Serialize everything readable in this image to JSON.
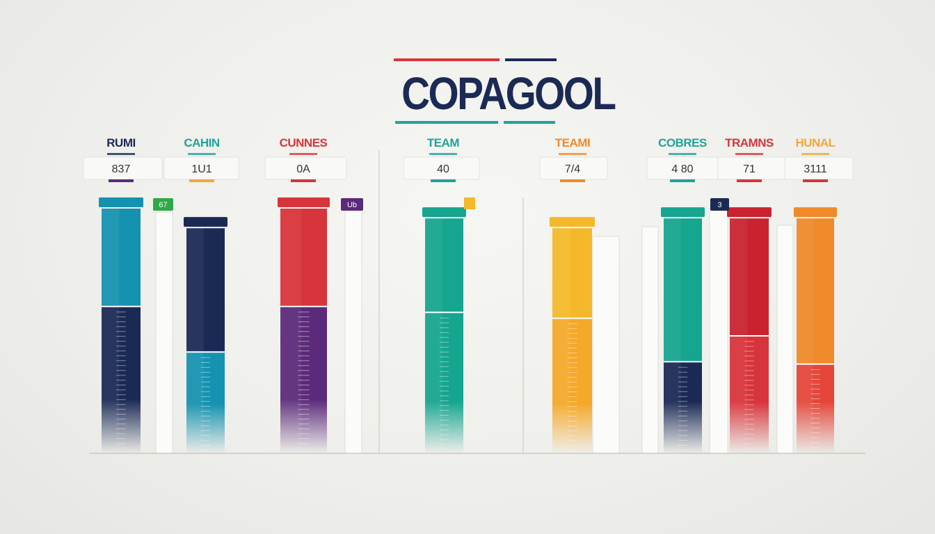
{
  "title": "COPAGOOL",
  "colors": {
    "title": "#1b2a55",
    "rule_red": "#d8343b",
    "rule_navy": "#1b2a55",
    "rule_teal": "#1fa39a",
    "baseline": "#c9c9c4"
  },
  "chart_data": {
    "type": "bar",
    "title": "COPAGOOL",
    "xlabel": "",
    "ylabel": "",
    "grid": false,
    "legend": "none",
    "ylim": [
      0,
      100
    ],
    "categories": [
      {
        "label": "RUMI",
        "value_label": "837",
        "label_color": "#1b2a55",
        "tick_color": "#5b2a7a"
      },
      {
        "label": "CAHIN",
        "value_label": "1U1",
        "label_color": "#1fa39a",
        "tick_color": "#f0a83a"
      },
      {
        "label": "CUNNES",
        "value_label": "0A",
        "label_color": "#d8343b",
        "tick_color": "#d8343b"
      },
      {
        "label": "TEAM",
        "value_label": "40",
        "label_color": "#1fa39a",
        "tick_color": "#1fa39a"
      },
      {
        "label": "TEAMI",
        "value_label": "7/4",
        "label_color": "#f08a2a",
        "tick_color": "#f08a2a"
      },
      {
        "label": "COBRES",
        "value_label": "4 80",
        "label_color": "#1fa39a",
        "tick_color": "#1fa39a"
      },
      {
        "label": "TRAMNS",
        "value_label": "71",
        "label_color": "#d8343b",
        "tick_color": "#d8343b"
      },
      {
        "label": "HUNAL",
        "value_label": "3111",
        "label_color": "#f0a83a",
        "tick_color": "#d8343b"
      }
    ],
    "bars": [
      {
        "name": "rumi-bar",
        "value": 100,
        "upper": "#1592b0",
        "lower": "#1b2a55",
        "split": 0.4
      },
      {
        "name": "cahin-bar",
        "value": 92,
        "upper": "#1b2a55",
        "lower": "#1592b0",
        "split": 0.55
      },
      {
        "name": "cunnes-bar",
        "value": 100,
        "upper": "#d8343b",
        "lower": "#5b2a7a",
        "split": 0.4
      },
      {
        "name": "team-bar",
        "value": 96,
        "upper": "#16a58f",
        "lower": "#16a58f",
        "split": 0.4
      },
      {
        "name": "teami-bar",
        "value": 92,
        "upper": "#f5b82a",
        "lower": "#f5a82a",
        "split": 0.4
      },
      {
        "name": "cobres-bar",
        "value": 96,
        "upper": "#16a58f",
        "lower": "#1b2a55",
        "split": 0.61
      },
      {
        "name": "tramns-bar",
        "value": 96,
        "upper": "#c8232f",
        "lower": "#d8343b",
        "split": 0.5
      },
      {
        "name": "hunal-bar",
        "value": 96,
        "upper": "#f08a2a",
        "lower": "#e5463a",
        "split": 0.62
      }
    ],
    "tags": [
      {
        "text": "67",
        "color": "#2fa84a"
      },
      {
        "text": "Ub",
        "color": "#5b2a7a"
      },
      {
        "text": "3",
        "color": "#1b2a55"
      }
    ]
  }
}
